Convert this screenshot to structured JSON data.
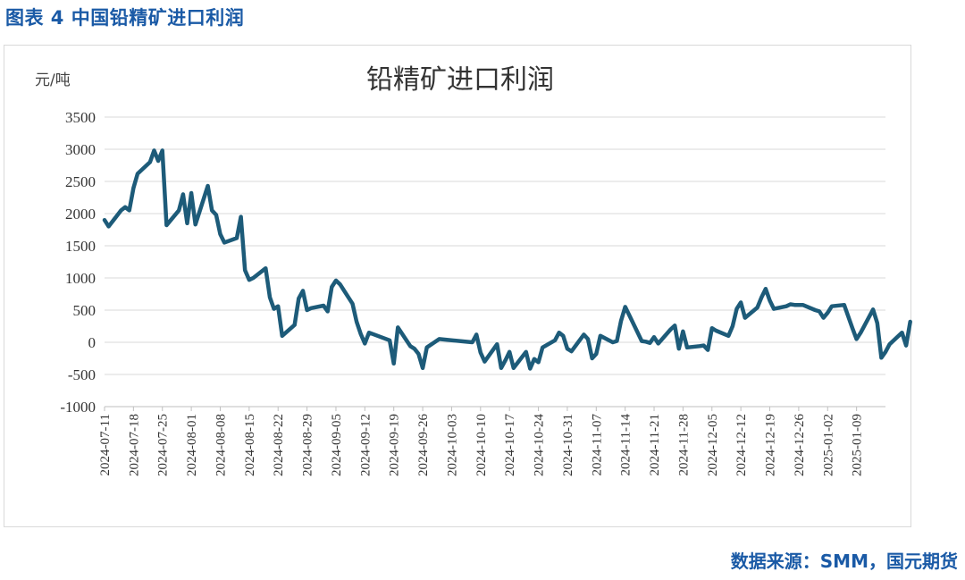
{
  "figure": {
    "caption": "图表 4 中国铅精矿进口利润",
    "source": "数据来源：SMM，国元期货"
  },
  "colors": {
    "caption": "#1a5aa6",
    "line": "#1d5b79",
    "grid": "#d9d9d9"
  },
  "chart_data": {
    "type": "line",
    "title": "铅精矿进口利润",
    "ylabel": "元/吨",
    "xlabel": "",
    "ylim": [
      -1000,
      3500
    ],
    "yticks": [
      3500,
      3000,
      2500,
      2000,
      1500,
      1000,
      500,
      0,
      -500,
      -1000
    ],
    "xlim": [
      "2024-07-11",
      "2025-01-16"
    ],
    "xticks": [
      "2024-07-11",
      "2024-07-18",
      "2024-07-25",
      "2024-08-01",
      "2024-08-08",
      "2024-08-15",
      "2024-08-22",
      "2024-08-29",
      "2024-09-05",
      "2024-09-12",
      "2024-09-19",
      "2024-09-26",
      "2024-10-03",
      "2024-10-10",
      "2024-10-17",
      "2024-10-24",
      "2024-10-31",
      "2024-11-07",
      "2024-11-14",
      "2024-11-21",
      "2024-11-28",
      "2024-12-05",
      "2024-12-12",
      "2024-12-19",
      "2024-12-26",
      "2025-01-02",
      "2025-01-09"
    ],
    "grid": "horizontal",
    "legend": "none",
    "series": [
      {
        "color": "#1d5b79",
        "points": [
          [
            "2024-07-11",
            1900
          ],
          [
            "2024-07-12",
            1800
          ],
          [
            "2024-07-15",
            2050
          ],
          [
            "2024-07-16",
            2100
          ],
          [
            "2024-07-17",
            2050
          ],
          [
            "2024-07-18",
            2400
          ],
          [
            "2024-07-19",
            2620
          ],
          [
            "2024-07-22",
            2800
          ],
          [
            "2024-07-23",
            2980
          ],
          [
            "2024-07-24",
            2820
          ],
          [
            "2024-07-25",
            2980
          ],
          [
            "2024-07-26",
            1820
          ],
          [
            "2024-07-29",
            2050
          ],
          [
            "2024-07-30",
            2300
          ],
          [
            "2024-07-31",
            1850
          ],
          [
            "2024-08-01",
            2320
          ],
          [
            "2024-08-02",
            1830
          ],
          [
            "2024-08-05",
            2430
          ],
          [
            "2024-08-06",
            2050
          ],
          [
            "2024-08-07",
            1980
          ],
          [
            "2024-08-08",
            1680
          ],
          [
            "2024-08-09",
            1550
          ],
          [
            "2024-08-12",
            1620
          ],
          [
            "2024-08-13",
            1950
          ],
          [
            "2024-08-14",
            1120
          ],
          [
            "2024-08-15",
            970
          ],
          [
            "2024-08-16",
            1000
          ],
          [
            "2024-08-19",
            1150
          ],
          [
            "2024-08-20",
            700
          ],
          [
            "2024-08-21",
            520
          ],
          [
            "2024-08-22",
            560
          ],
          [
            "2024-08-23",
            100
          ],
          [
            "2024-08-26",
            270
          ],
          [
            "2024-08-27",
            680
          ],
          [
            "2024-08-28",
            800
          ],
          [
            "2024-08-29",
            500
          ],
          [
            "2024-08-30",
            530
          ],
          [
            "2024-09-02",
            570
          ],
          [
            "2024-09-03",
            480
          ],
          [
            "2024-09-04",
            860
          ],
          [
            "2024-09-05",
            960
          ],
          [
            "2024-09-06",
            900
          ],
          [
            "2024-09-09",
            600
          ],
          [
            "2024-09-10",
            320
          ],
          [
            "2024-09-11",
            130
          ],
          [
            "2024-09-12",
            -20
          ],
          [
            "2024-09-13",
            150
          ],
          [
            "2024-09-18",
            30
          ],
          [
            "2024-09-19",
            -330
          ],
          [
            "2024-09-20",
            230
          ],
          [
            "2024-09-23",
            -60
          ],
          [
            "2024-09-24",
            -100
          ],
          [
            "2024-09-25",
            -180
          ],
          [
            "2024-09-26",
            -400
          ],
          [
            "2024-09-27",
            -80
          ],
          [
            "2024-09-30",
            50
          ],
          [
            "2024-10-08",
            0
          ],
          [
            "2024-10-09",
            120
          ],
          [
            "2024-10-10",
            -160
          ],
          [
            "2024-10-11",
            -300
          ],
          [
            "2024-10-14",
            -30
          ],
          [
            "2024-10-15",
            -400
          ],
          [
            "2024-10-16",
            -280
          ],
          [
            "2024-10-17",
            -150
          ],
          [
            "2024-10-18",
            -400
          ],
          [
            "2024-10-21",
            -150
          ],
          [
            "2024-10-22",
            -410
          ],
          [
            "2024-10-23",
            -260
          ],
          [
            "2024-10-24",
            -310
          ],
          [
            "2024-10-25",
            -80
          ],
          [
            "2024-10-28",
            30
          ],
          [
            "2024-10-29",
            150
          ],
          [
            "2024-10-30",
            100
          ],
          [
            "2024-10-31",
            -100
          ],
          [
            "2024-11-01",
            -140
          ],
          [
            "2024-11-04",
            120
          ],
          [
            "2024-11-05",
            50
          ],
          [
            "2024-11-06",
            -250
          ],
          [
            "2024-11-07",
            -180
          ],
          [
            "2024-11-08",
            100
          ],
          [
            "2024-11-11",
            0
          ],
          [
            "2024-11-12",
            20
          ],
          [
            "2024-11-13",
            330
          ],
          [
            "2024-11-14",
            550
          ],
          [
            "2024-11-15",
            420
          ],
          [
            "2024-11-18",
            20
          ],
          [
            "2024-11-19",
            10
          ],
          [
            "2024-11-20",
            -10
          ],
          [
            "2024-11-21",
            80
          ],
          [
            "2024-11-22",
            -20
          ],
          [
            "2024-11-25",
            200
          ],
          [
            "2024-11-26",
            260
          ],
          [
            "2024-11-27",
            -100
          ],
          [
            "2024-11-28",
            170
          ],
          [
            "2024-11-29",
            -80
          ],
          [
            "2024-12-02",
            -60
          ],
          [
            "2024-12-03",
            -50
          ],
          [
            "2024-12-04",
            -120
          ],
          [
            "2024-12-05",
            220
          ],
          [
            "2024-12-06",
            180
          ],
          [
            "2024-12-09",
            100
          ],
          [
            "2024-12-10",
            250
          ],
          [
            "2024-12-11",
            520
          ],
          [
            "2024-12-12",
            620
          ],
          [
            "2024-12-13",
            380
          ],
          [
            "2024-12-16",
            540
          ],
          [
            "2024-12-17",
            700
          ],
          [
            "2024-12-18",
            830
          ],
          [
            "2024-12-19",
            650
          ],
          [
            "2024-12-20",
            520
          ],
          [
            "2024-12-23",
            560
          ],
          [
            "2024-12-24",
            590
          ],
          [
            "2024-12-25",
            580
          ],
          [
            "2024-12-26",
            580
          ],
          [
            "2024-12-27",
            580
          ],
          [
            "2024-12-30",
            500
          ],
          [
            "2024-12-31",
            480
          ],
          [
            "2025-01-01",
            380
          ],
          [
            "2025-01-02",
            460
          ],
          [
            "2025-01-03",
            560
          ],
          [
            "2025-01-06",
            580
          ],
          [
            "2025-01-07",
            400
          ],
          [
            "2025-01-08",
            220
          ],
          [
            "2025-01-09",
            50
          ],
          [
            "2025-01-10",
            150
          ],
          [
            "2025-01-13",
            510
          ],
          [
            "2025-01-14",
            300
          ],
          [
            "2025-01-15",
            -240
          ],
          [
            "2025-01-16",
            -150
          ],
          [
            "2025-01-17",
            -30
          ],
          [
            "2025-01-20",
            150
          ],
          [
            "2025-01-21",
            -50
          ],
          [
            "2025-01-22",
            320
          ]
        ]
      }
    ]
  }
}
